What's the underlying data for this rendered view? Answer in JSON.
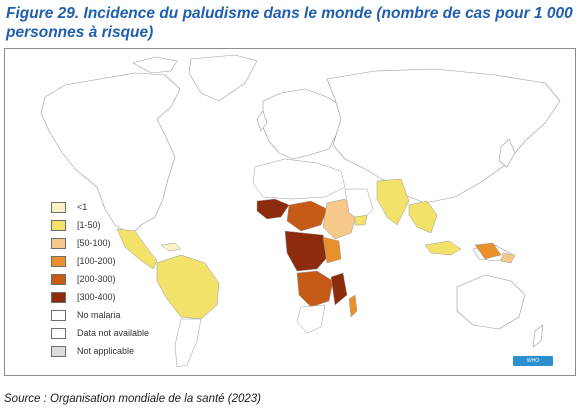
{
  "figure": {
    "title": "Figure 29. Incidence du paludisme dans le monde (nombre de cas pour 1 000 personnes à risque)",
    "source": "Source : Organisation mondiale de la santé (2023)"
  },
  "map": {
    "badge": "WHO",
    "colors": {
      "land": "#ffffff",
      "border": "#9a9a9a",
      "c_lt1": "#fbf2c8",
      "c_1_50": "#f3e26a",
      "c_50_100": "#f6c98a",
      "c_100_200": "#e8912c",
      "c_200_300": "#c65a17",
      "c_300_400": "#8c2c0d",
      "not_applicable": "#dcdcdc"
    },
    "legend": [
      {
        "label": "<1",
        "color": "#fbf2c8"
      },
      {
        "label": "[1-50)",
        "color": "#f3e26a"
      },
      {
        "label": "[50-100)",
        "color": "#f6c98a"
      },
      {
        "label": "[100-200)",
        "color": "#e8912c"
      },
      {
        "label": "[200-300)",
        "color": "#c65a17"
      },
      {
        "label": "[300-400)",
        "color": "#8c2c0d"
      },
      {
        "label": "No malaria",
        "color": "#ffffff"
      },
      {
        "label": "Data not available",
        "color": "#ffffff"
      },
      {
        "label": "Not applicable",
        "color": "#dcdcdc"
      }
    ]
  }
}
